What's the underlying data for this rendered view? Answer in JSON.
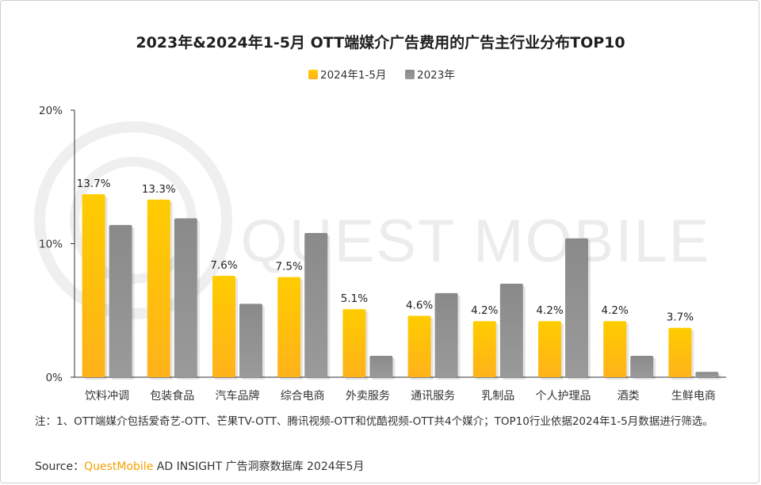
{
  "colors": {
    "series_2024": "#ffc20e",
    "series_2023": "#8c8c8c",
    "axis": "#333333",
    "brand": "#f5a000",
    "watermark": "#eeeeee"
  },
  "watermark": {
    "text": "QUEST MOBILE"
  },
  "chart_data": {
    "type": "bar",
    "title": "2023年&2024年1-5月 OTT端媒介广告费用的广告主行业分布TOP10",
    "categories": [
      "饮料冲调",
      "包装食品",
      "汽车品牌",
      "综合电商",
      "外卖服务",
      "通讯服务",
      "乳制品",
      "个人护理品",
      "酒类",
      "生鲜电商"
    ],
    "series": [
      {
        "name": "2024年1-5月",
        "values": [
          13.7,
          13.3,
          7.6,
          7.5,
          5.1,
          4.6,
          4.2,
          4.2,
          4.2,
          3.7
        ],
        "labels": [
          "13.7%",
          "13.3%",
          "7.6%",
          "7.5%",
          "5.1%",
          "4.6%",
          "4.2%",
          "4.2%",
          "4.2%",
          "3.7%"
        ]
      },
      {
        "name": "2023年",
        "values": [
          11.4,
          11.9,
          5.5,
          10.8,
          1.6,
          6.3,
          7.0,
          10.4,
          1.6,
          0.4
        ]
      }
    ],
    "y_ticks": [
      "0%",
      "10%",
      "20%"
    ],
    "ylim": [
      0,
      20
    ],
    "grid": false,
    "legend_position": "top-center"
  },
  "footnote": "注：1、OTT端媒介包括爱奇艺-OTT、芒果TV-OTT、腾讯视频-OTT和优酷视频-OTT共4个媒介；TOP10行业依据2024年1-5月数据进行筛选。",
  "source": {
    "prefix": "Source：",
    "brand": "QuestMobile",
    "rest": " AD INSIGHT 广告洞察数据库 2024年5月"
  }
}
